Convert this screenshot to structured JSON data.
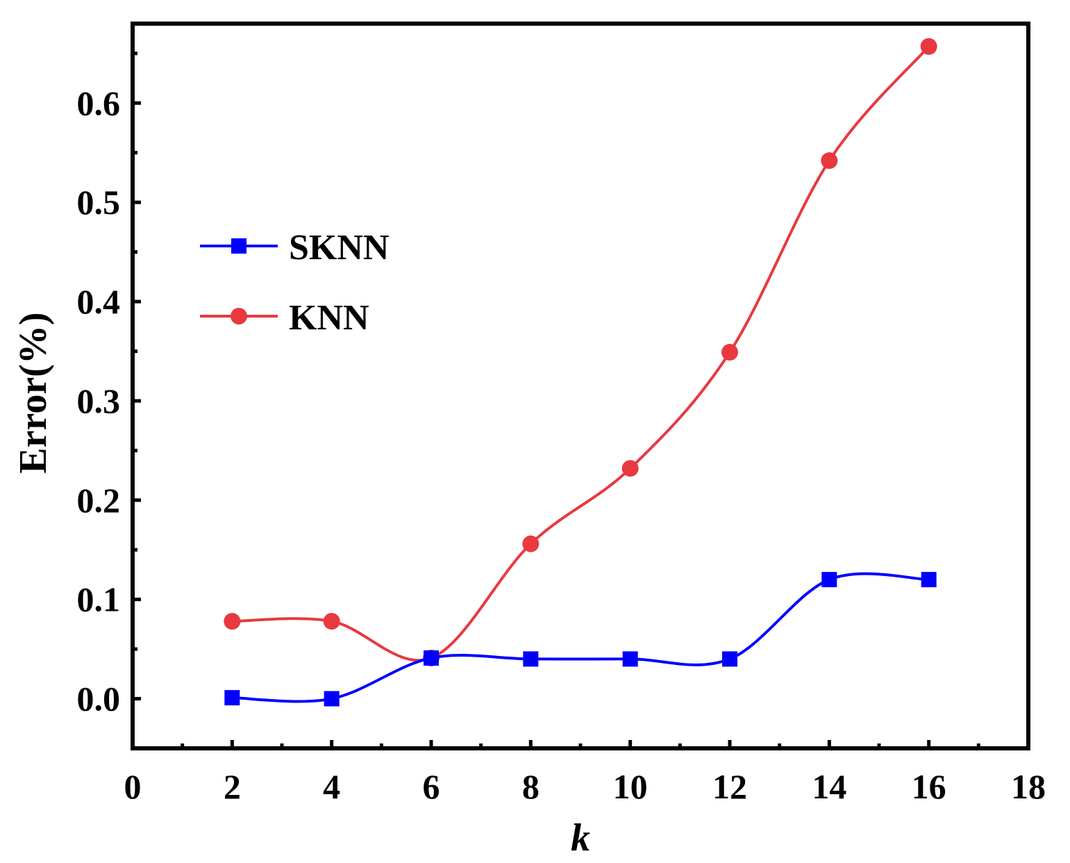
{
  "chart_data": {
    "type": "line",
    "xlabel": "k",
    "ylabel": "Error(%)",
    "xlim": [
      0,
      18
    ],
    "ylim": [
      -0.05,
      0.68
    ],
    "xticks": [
      0,
      2,
      4,
      6,
      8,
      10,
      12,
      14,
      16,
      18
    ],
    "xtick_labels": [
      "0",
      "2",
      "4",
      "6",
      "8",
      "10",
      "12",
      "14",
      "16",
      "18"
    ],
    "yticks": [
      0.0,
      0.1,
      0.2,
      0.3,
      0.4,
      0.5,
      0.6
    ],
    "ytick_labels": [
      "0.0",
      "0.1",
      "0.2",
      "0.3",
      "0.4",
      "0.5",
      "0.6"
    ],
    "grid": false,
    "legend_position": "upper-left",
    "smooth": true,
    "series": [
      {
        "name": "SKNN",
        "marker": "square",
        "color": "#0000ff",
        "x": [
          2,
          4,
          6,
          8,
          10,
          12,
          14,
          16
        ],
        "values": [
          0.001,
          0.0,
          0.041,
          0.04,
          0.04,
          0.04,
          0.12,
          0.12
        ]
      },
      {
        "name": "KNN",
        "marker": "circle",
        "color": "#e8393f",
        "x": [
          2,
          4,
          6,
          8,
          10,
          12,
          14,
          16
        ],
        "values": [
          0.078,
          0.078,
          0.041,
          0.156,
          0.232,
          0.349,
          0.542,
          0.657
        ]
      }
    ]
  }
}
